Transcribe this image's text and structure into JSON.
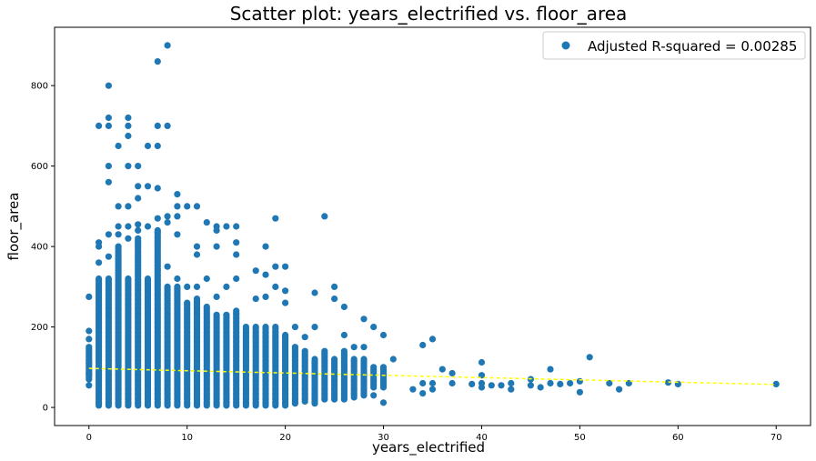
{
  "chart_data": {
    "type": "scatter",
    "title": "Scatter plot: years_electrified vs. floor_area",
    "xlabel": "years_electrified",
    "ylabel": "floor_area",
    "xlim": [
      -3.5,
      73.5
    ],
    "ylim": [
      -45,
      945
    ],
    "xticks": [
      0,
      10,
      20,
      30,
      40,
      50,
      60,
      70
    ],
    "yticks": [
      0,
      200,
      400,
      600,
      800
    ],
    "grid": false,
    "legend_position": "top-right",
    "point_color": "#1f77b4",
    "trend_color": "#ffff00",
    "series": [
      {
        "name": "Adjusted R-squared = 0.00285",
        "kind": "points",
        "stacks": [
          {
            "x": 0,
            "ymin": 70,
            "ymax": 150
          },
          {
            "x": 1,
            "ymin": 5,
            "ymax": 320
          },
          {
            "x": 2,
            "ymin": 5,
            "ymax": 320
          },
          {
            "x": 3,
            "ymin": 5,
            "ymax": 400
          },
          {
            "x": 4,
            "ymin": 5,
            "ymax": 320
          },
          {
            "x": 5,
            "ymin": 5,
            "ymax": 420
          },
          {
            "x": 6,
            "ymin": 5,
            "ymax": 320
          },
          {
            "x": 7,
            "ymin": 5,
            "ymax": 440
          },
          {
            "x": 8,
            "ymin": 5,
            "ymax": 300
          },
          {
            "x": 9,
            "ymin": 5,
            "ymax": 300
          },
          {
            "x": 10,
            "ymin": 5,
            "ymax": 260
          },
          {
            "x": 11,
            "ymin": 5,
            "ymax": 270
          },
          {
            "x": 12,
            "ymin": 5,
            "ymax": 250
          },
          {
            "x": 13,
            "ymin": 5,
            "ymax": 230
          },
          {
            "x": 14,
            "ymin": 5,
            "ymax": 230
          },
          {
            "x": 15,
            "ymin": 5,
            "ymax": 240
          },
          {
            "x": 16,
            "ymin": 5,
            "ymax": 200
          },
          {
            "x": 17,
            "ymin": 5,
            "ymax": 200
          },
          {
            "x": 18,
            "ymin": 5,
            "ymax": 200
          },
          {
            "x": 19,
            "ymin": 5,
            "ymax": 200
          },
          {
            "x": 20,
            "ymin": 5,
            "ymax": 180
          },
          {
            "x": 21,
            "ymin": 10,
            "ymax": 150
          },
          {
            "x": 22,
            "ymin": 15,
            "ymax": 140
          },
          {
            "x": 23,
            "ymin": 10,
            "ymax": 120
          },
          {
            "x": 24,
            "ymin": 20,
            "ymax": 140
          },
          {
            "x": 25,
            "ymin": 20,
            "ymax": 120
          },
          {
            "x": 26,
            "ymin": 20,
            "ymax": 140
          },
          {
            "x": 27,
            "ymin": 25,
            "ymax": 120
          },
          {
            "x": 28,
            "ymin": 30,
            "ymax": 120
          },
          {
            "x": 29,
            "ymin": 50,
            "ymax": 100
          },
          {
            "x": 30,
            "ymin": 50,
            "ymax": 100
          }
        ],
        "points": [
          {
            "x": 0,
            "y": 275
          },
          {
            "x": 0,
            "y": 190
          },
          {
            "x": 0,
            "y": 170
          },
          {
            "x": 0,
            "y": 55
          },
          {
            "x": 0,
            "y": 85
          },
          {
            "x": 0,
            "y": 110
          },
          {
            "x": 1,
            "y": 700
          },
          {
            "x": 1,
            "y": 410
          },
          {
            "x": 1,
            "y": 400
          },
          {
            "x": 1,
            "y": 360
          },
          {
            "x": 2,
            "y": 800
          },
          {
            "x": 2,
            "y": 720
          },
          {
            "x": 2,
            "y": 700
          },
          {
            "x": 2,
            "y": 600
          },
          {
            "x": 2,
            "y": 560
          },
          {
            "x": 2,
            "y": 430
          },
          {
            "x": 2,
            "y": 375
          },
          {
            "x": 3,
            "y": 650
          },
          {
            "x": 3,
            "y": 500
          },
          {
            "x": 3,
            "y": 450
          },
          {
            "x": 3,
            "y": 430
          },
          {
            "x": 4,
            "y": 720
          },
          {
            "x": 4,
            "y": 700
          },
          {
            "x": 4,
            "y": 675
          },
          {
            "x": 4,
            "y": 600
          },
          {
            "x": 4,
            "y": 500
          },
          {
            "x": 4,
            "y": 450
          },
          {
            "x": 4,
            "y": 420
          },
          {
            "x": 5,
            "y": 600
          },
          {
            "x": 5,
            "y": 550
          },
          {
            "x": 5,
            "y": 520
          },
          {
            "x": 5,
            "y": 455
          },
          {
            "x": 5,
            "y": 440
          },
          {
            "x": 6,
            "y": 650
          },
          {
            "x": 6,
            "y": 550
          },
          {
            "x": 6,
            "y": 450
          },
          {
            "x": 7,
            "y": 860
          },
          {
            "x": 7,
            "y": 700
          },
          {
            "x": 7,
            "y": 650
          },
          {
            "x": 7,
            "y": 545
          },
          {
            "x": 7,
            "y": 470
          },
          {
            "x": 8,
            "y": 900
          },
          {
            "x": 8,
            "y": 700
          },
          {
            "x": 8,
            "y": 475
          },
          {
            "x": 8,
            "y": 460
          },
          {
            "x": 8,
            "y": 350
          },
          {
            "x": 9,
            "y": 530
          },
          {
            "x": 9,
            "y": 500
          },
          {
            "x": 9,
            "y": 475
          },
          {
            "x": 9,
            "y": 430
          },
          {
            "x": 9,
            "y": 320
          },
          {
            "x": 10,
            "y": 500
          },
          {
            "x": 10,
            "y": 300
          },
          {
            "x": 11,
            "y": 500
          },
          {
            "x": 11,
            "y": 400
          },
          {
            "x": 11,
            "y": 380
          },
          {
            "x": 11,
            "y": 300
          },
          {
            "x": 12,
            "y": 460
          },
          {
            "x": 12,
            "y": 320
          },
          {
            "x": 13,
            "y": 450
          },
          {
            "x": 13,
            "y": 440
          },
          {
            "x": 13,
            "y": 400
          },
          {
            "x": 13,
            "y": 275
          },
          {
            "x": 14,
            "y": 450
          },
          {
            "x": 14,
            "y": 300
          },
          {
            "x": 15,
            "y": 450
          },
          {
            "x": 15,
            "y": 410
          },
          {
            "x": 15,
            "y": 380
          },
          {
            "x": 15,
            "y": 320
          },
          {
            "x": 17,
            "y": 340
          },
          {
            "x": 17,
            "y": 270
          },
          {
            "x": 18,
            "y": 400
          },
          {
            "x": 18,
            "y": 330
          },
          {
            "x": 18,
            "y": 275
          },
          {
            "x": 19,
            "y": 470
          },
          {
            "x": 19,
            "y": 350
          },
          {
            "x": 19,
            "y": 300
          },
          {
            "x": 20,
            "y": 350
          },
          {
            "x": 20,
            "y": 290
          },
          {
            "x": 20,
            "y": 260
          },
          {
            "x": 21,
            "y": 200
          },
          {
            "x": 22,
            "y": 175
          },
          {
            "x": 23,
            "y": 285
          },
          {
            "x": 23,
            "y": 200
          },
          {
            "x": 24,
            "y": 475
          },
          {
            "x": 25,
            "y": 300
          },
          {
            "x": 25,
            "y": 270
          },
          {
            "x": 26,
            "y": 250
          },
          {
            "x": 26,
            "y": 180
          },
          {
            "x": 27,
            "y": 150
          },
          {
            "x": 28,
            "y": 220
          },
          {
            "x": 28,
            "y": 150
          },
          {
            "x": 29,
            "y": 200
          },
          {
            "x": 29,
            "y": 30
          },
          {
            "x": 30,
            "y": 180
          },
          {
            "x": 30,
            "y": 12
          },
          {
            "x": 30,
            "y": 80
          },
          {
            "x": 31,
            "y": 120
          },
          {
            "x": 33,
            "y": 45
          },
          {
            "x": 34,
            "y": 155
          },
          {
            "x": 34,
            "y": 60
          },
          {
            "x": 34,
            "y": 35
          },
          {
            "x": 35,
            "y": 170
          },
          {
            "x": 35,
            "y": 60
          },
          {
            "x": 35,
            "y": 45
          },
          {
            "x": 36,
            "y": 95
          },
          {
            "x": 37,
            "y": 85
          },
          {
            "x": 37,
            "y": 60
          },
          {
            "x": 39,
            "y": 58
          },
          {
            "x": 40,
            "y": 112
          },
          {
            "x": 40,
            "y": 80
          },
          {
            "x": 40,
            "y": 60
          },
          {
            "x": 40,
            "y": 50
          },
          {
            "x": 41,
            "y": 55
          },
          {
            "x": 42,
            "y": 55
          },
          {
            "x": 43,
            "y": 60
          },
          {
            "x": 43,
            "y": 45
          },
          {
            "x": 45,
            "y": 70
          },
          {
            "x": 45,
            "y": 55
          },
          {
            "x": 46,
            "y": 50
          },
          {
            "x": 47,
            "y": 95
          },
          {
            "x": 47,
            "y": 60
          },
          {
            "x": 48,
            "y": 58
          },
          {
            "x": 49,
            "y": 60
          },
          {
            "x": 50,
            "y": 65
          },
          {
            "x": 50,
            "y": 38
          },
          {
            "x": 51,
            "y": 125
          },
          {
            "x": 53,
            "y": 60
          },
          {
            "x": 54,
            "y": 45
          },
          {
            "x": 55,
            "y": 60
          },
          {
            "x": 59,
            "y": 62
          },
          {
            "x": 60,
            "y": 58
          },
          {
            "x": 70,
            "y": 58
          }
        ]
      },
      {
        "kind": "trend",
        "points": [
          {
            "x": 0,
            "y": 97
          },
          {
            "x": 70,
            "y": 57
          }
        ]
      }
    ]
  }
}
